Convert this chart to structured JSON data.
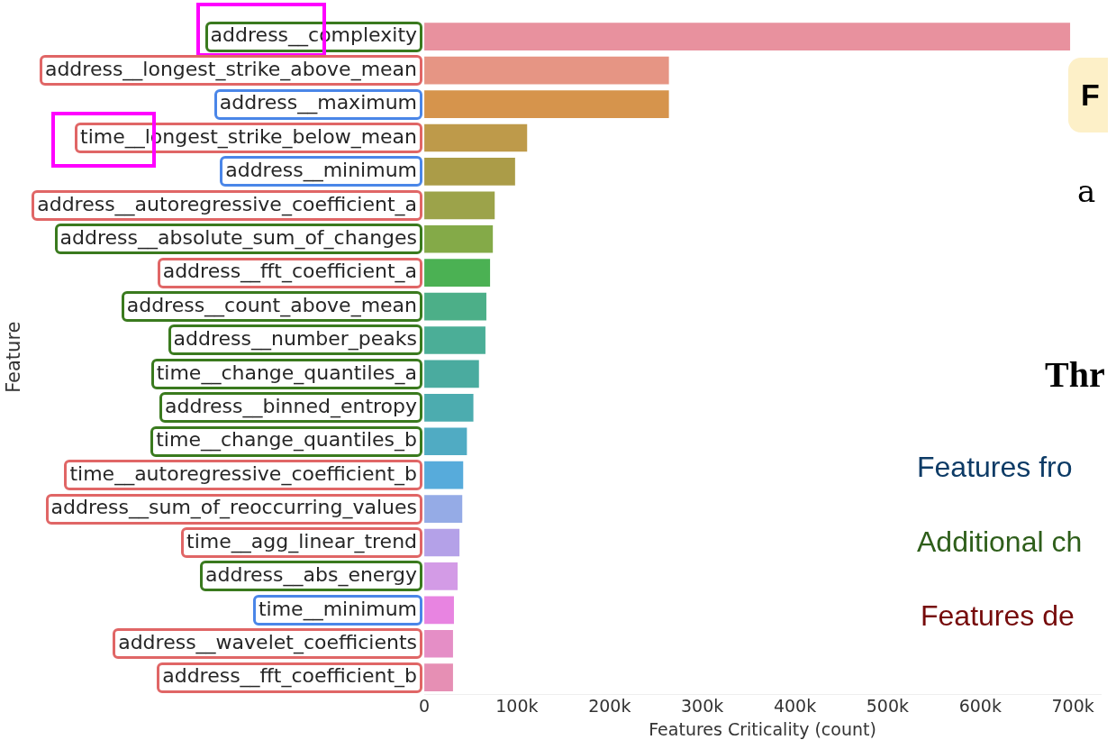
{
  "chart_data": {
    "type": "bar",
    "orientation": "horizontal",
    "xlabel": "Features Criticality (count)",
    "ylabel": "Feature",
    "categories": [
      "address__complexity",
      "address__longest_strike_above_mean",
      "address__maximum",
      "time__longest_strike_below_mean",
      "address__minimum",
      "address__autoregressive_coefficient_a",
      "address__absolute_sum_of_changes",
      "address__fft_coefficient_a",
      "address__count_above_mean",
      "address__number_peaks",
      "time__change_quantiles_a",
      "address__binned_entropy",
      "time__change_quantiles_b",
      "time__autoregressive_coefficient_b",
      "address__sum_of_reoccurring_values",
      "time__agg_linear_trend",
      "address__abs_energy",
      "time__minimum",
      "address__wavelet_coefficients",
      "address__fft_coefficient_b"
    ],
    "values": [
      697000,
      264000,
      264000,
      111000,
      98000,
      76000,
      74000,
      71000,
      67000,
      66000,
      59000,
      53000,
      46000,
      42000,
      41000,
      38000,
      36000,
      32000,
      31000,
      31000
    ],
    "colors": [
      "#e8919e",
      "#e69584",
      "#d6944c",
      "#be9a4a",
      "#ab9c48",
      "#9ca34a",
      "#84aa48",
      "#4bb153",
      "#4caf88",
      "#4bae97",
      "#4aab9f",
      "#4cacaf",
      "#50abc3",
      "#57abdb",
      "#95abe6",
      "#b4a1e8",
      "#d39be6",
      "#e884e1",
      "#e58ec6",
      "#e68fb4"
    ],
    "xlim": [
      0,
      730000
    ],
    "xticks": [
      0,
      {
        "value": 100000,
        "label": "100k"
      },
      {
        "value": 200000,
        "label": "200k"
      },
      {
        "value": 300000,
        "label": "300k"
      },
      {
        "value": 400000,
        "label": "400k"
      },
      {
        "value": 500000,
        "label": "500k"
      },
      {
        "value": 600000,
        "label": "600k"
      },
      {
        "value": 700000,
        "label": "700k"
      }
    ],
    "grid": false,
    "legend": false,
    "annotations": [
      "F",
      "a",
      "Thr",
      "Features fro",
      "Additional ch",
      "Features de"
    ]
  }
}
